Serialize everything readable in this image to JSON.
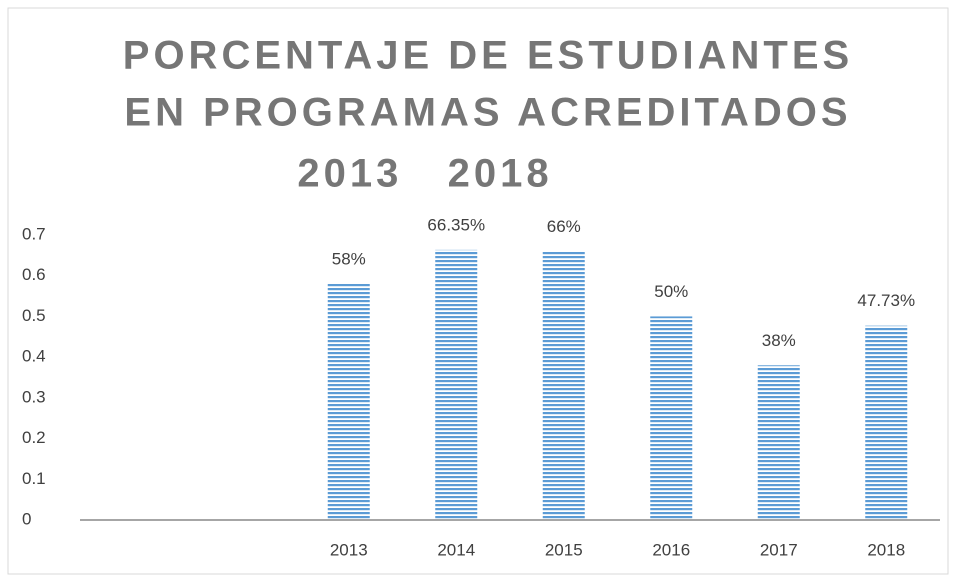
{
  "chart_data": {
    "type": "bar",
    "title": [
      "PORCENTAJE DE ESTUDIANTES",
      "EN PROGRAMAS ACREDITADOS",
      "2013   2018"
    ],
    "categories": [
      null,
      null,
      "2013",
      "2014",
      "2015",
      "2016",
      "2017",
      "2018"
    ],
    "values": [
      null,
      null,
      0.58,
      0.6635,
      0.66,
      0.5,
      0.38,
      0.4773
    ],
    "value_labels": [
      null,
      null,
      "58%",
      "66.35%",
      "66%",
      "50%",
      "38%",
      "47.73%"
    ],
    "color": "#5b9bd5",
    "ylim": [
      0,
      0.7
    ],
    "yticks": [
      0,
      0.1,
      0.2,
      0.3,
      0.4,
      0.5,
      0.6,
      0.7
    ],
    "grid": false
  }
}
